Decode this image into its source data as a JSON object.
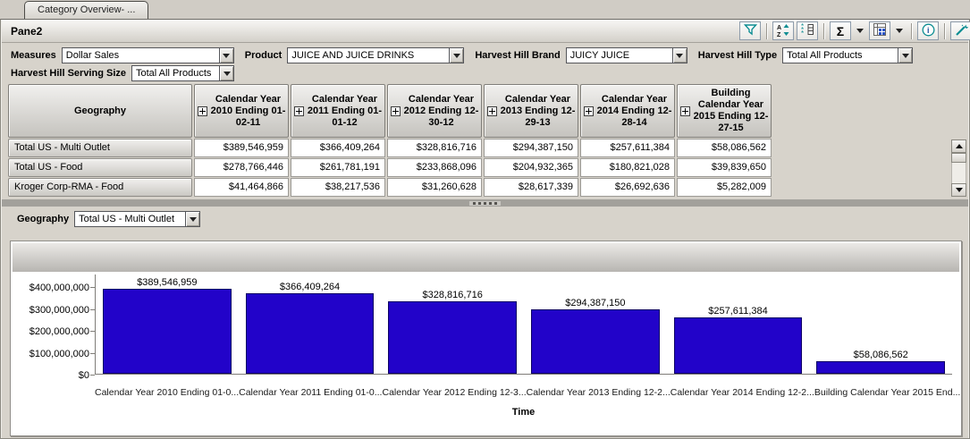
{
  "tab": {
    "label": "Category Overview- ..."
  },
  "pane": {
    "title": "Pane2"
  },
  "toolbar": {
    "icons": [
      "filter-icon",
      "sort-az-icon",
      "select-members-icon",
      "sum-icon",
      "sum-caret",
      "view-layout-icon",
      "view-layout-caret",
      "info-icon",
      "tools-wand-icon"
    ]
  },
  "filters": {
    "measures": {
      "label": "Measures",
      "value": "Dollar Sales"
    },
    "product": {
      "label": "Product",
      "value": "JUICE AND JUICE DRINKS"
    },
    "brand": {
      "label": "Harvest Hill Brand",
      "value": "JUICY JUICE"
    },
    "type": {
      "label": "Harvest Hill Type",
      "value": "Total All Products"
    },
    "serving": {
      "label": "Harvest Hill Serving Size",
      "value": "Total All Products"
    },
    "geography": {
      "label": "Geography",
      "value": "Total US - Multi Outlet"
    }
  },
  "table": {
    "corner": "Geography",
    "columns": [
      "Calendar Year 2010 Ending 01-02-11",
      "Calendar Year 2011 Ending 01-01-12",
      "Calendar Year 2012 Ending 12-30-12",
      "Calendar Year 2013 Ending 12-29-13",
      "Calendar Year 2014 Ending 12-28-14",
      "Building Calendar Year 2015 Ending 12-27-15"
    ],
    "rows": [
      {
        "name": "Total US - Multi Outlet",
        "values": [
          "$389,546,959",
          "$366,409,264",
          "$328,816,716",
          "$294,387,150",
          "$257,611,384",
          "$58,086,562"
        ]
      },
      {
        "name": "Total US - Food",
        "values": [
          "$278,766,446",
          "$261,781,191",
          "$233,868,096",
          "$204,932,365",
          "$180,821,028",
          "$39,839,650"
        ]
      },
      {
        "name": "Kroger Corp-RMA - Food",
        "values": [
          "$41,464,866",
          "$38,217,536",
          "$31,260,628",
          "$28,617,339",
          "$26,692,636",
          "$5,282,009"
        ]
      }
    ]
  },
  "chart_data": {
    "type": "bar",
    "title": "",
    "categories": [
      "Calendar Year 2010 Ending 01-0...",
      "Calendar Year 2011 Ending 01-0...",
      "Calendar Year 2012 Ending 12-3...",
      "Calendar Year 2013 Ending 12-2...",
      "Calendar Year 2014 Ending 12-2...",
      "Building Calendar Year 2015 End..."
    ],
    "values": [
      389546959,
      366409264,
      328816716,
      294387150,
      257611384,
      58086562
    ],
    "bar_labels": [
      "$389,546,959",
      "$366,409,264",
      "$328,816,716",
      "$294,387,150",
      "$257,611,384",
      "$58,086,562"
    ],
    "xlabel": "Time",
    "ylabel": "",
    "ylim": [
      0,
      400000000
    ],
    "ytick_labels": [
      "$0",
      "$100,000,000",
      "$200,000,000",
      "$300,000,000",
      "$400,000,000"
    ],
    "bar_color": "#2203c9",
    "legend": "none",
    "grid": false
  }
}
